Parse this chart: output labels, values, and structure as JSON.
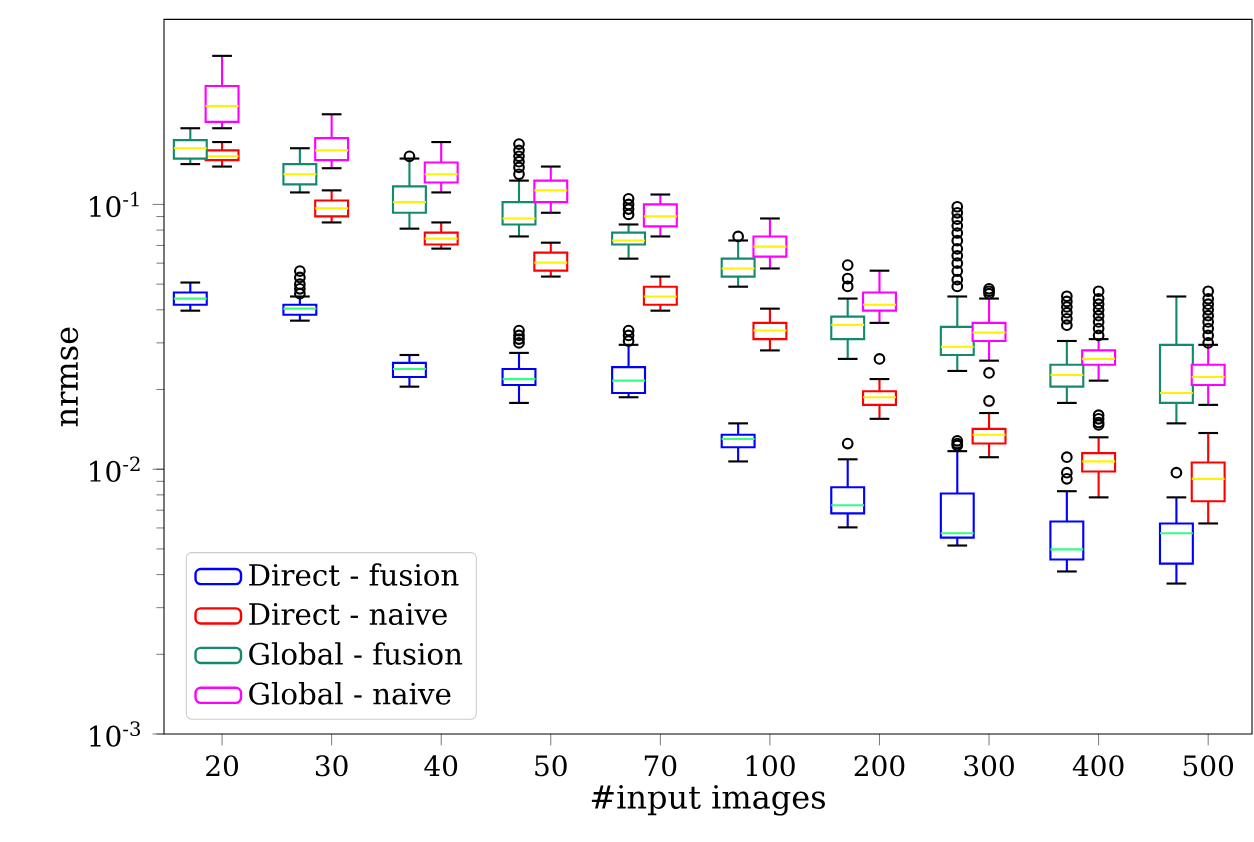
{
  "chart_data": {
    "type": "box",
    "xlabel": "#input images",
    "ylabel": "nrmse",
    "categories": [
      "20",
      "30",
      "40",
      "50",
      "70",
      "100",
      "200",
      "300",
      "400",
      "500"
    ],
    "log": "y",
    "ylim": [
      0.001,
      0.5
    ],
    "yticks": [
      {
        "value": 0.001,
        "label": "10$^{-3}$"
      },
      {
        "value": 0.01,
        "label": "10$^{-2}$"
      },
      {
        "value": 0.1,
        "label": "10$^{-1}$"
      }
    ],
    "legend": "bottom left",
    "grid": false,
    "marker": "circle",
    "series": [
      {
        "name": "Direct - fusion",
        "color": "#0000ff",
        "boxes": [
          {
            "low": 0.0397,
            "q1": 0.0418,
            "median": 0.0441,
            "q3": 0.0465,
            "high": 0.0507
          },
          {
            "low": 0.0364,
            "q1": 0.0383,
            "median": 0.0404,
            "q3": 0.0418,
            "high": 0.0449,
            "outliers": [
              0.056,
              0.053,
              0.05,
              0.048,
              0.046
            ]
          },
          {
            "low": 0.0205,
            "q1": 0.0223,
            "median": 0.0239,
            "q3": 0.0252,
            "high": 0.027
          },
          {
            "low": 0.0178,
            "q1": 0.0208,
            "median": 0.0219,
            "q3": 0.0239,
            "high": 0.0275,
            "outliers": [
              0.0334,
              0.032,
              0.031,
              0.03
            ]
          },
          {
            "low": 0.0187,
            "q1": 0.0194,
            "median": 0.0216,
            "q3": 0.0243,
            "high": 0.0295,
            "outliers": [
              0.0334,
              0.032,
              0.0305
            ]
          },
          {
            "low": 0.0107,
            "q1": 0.0121,
            "median": 0.013,
            "q3": 0.0135,
            "high": 0.0149
          },
          {
            "low": 0.00603,
            "q1": 0.00681,
            "median": 0.00731,
            "q3": 0.00855,
            "high": 0.0109,
            "outliers": [
              0.0125
            ]
          },
          {
            "low": 0.00515,
            "q1": 0.00552,
            "median": 0.00573,
            "q3": 0.0081,
            "high": 0.0117,
            "outliers": [
              0.0128,
              0.0125,
              0.0123
            ]
          },
          {
            "low": 0.00411,
            "q1": 0.00456,
            "median": 0.00498,
            "q3": 0.00635,
            "high": 0.00826,
            "outliers": [
              0.0111,
              0.0097,
              0.0092
            ]
          },
          {
            "low": 0.0037,
            "q1": 0.0044,
            "median": 0.00573,
            "q3": 0.00624,
            "high": 0.00783,
            "outliers": [
              0.0097
            ]
          }
        ]
      },
      {
        "name": "Direct - naive",
        "color": "#ff0000",
        "boxes": [
          {
            "low": 0.139,
            "q1": 0.147,
            "median": 0.152,
            "q3": 0.16,
            "high": 0.172
          },
          {
            "low": 0.0855,
            "q1": 0.0901,
            "median": 0.0966,
            "q3": 0.1035,
            "high": 0.113
          },
          {
            "low": 0.0681,
            "q1": 0.0706,
            "median": 0.0743,
            "q3": 0.0783,
            "high": 0.0855
          },
          {
            "low": 0.0534,
            "q1": 0.0562,
            "median": 0.0603,
            "q3": 0.0658,
            "high": 0.0717
          },
          {
            "low": 0.0397,
            "q1": 0.0418,
            "median": 0.0449,
            "q3": 0.0489,
            "high": 0.0534
          },
          {
            "low": 0.0281,
            "q1": 0.031,
            "median": 0.0334,
            "q3": 0.0357,
            "high": 0.0404
          },
          {
            "low": 0.0155,
            "q1": 0.0175,
            "median": 0.0187,
            "q3": 0.0197,
            "high": 0.0219,
            "outliers": [
              0.0261
            ]
          },
          {
            "low": 0.0111,
            "q1": 0.0125,
            "median": 0.0135,
            "q3": 0.0142,
            "high": 0.0163,
            "outliers": [
              0.0231,
              0.0181
            ]
          },
          {
            "low": 0.00783,
            "q1": 0.0098,
            "median": 0.0107,
            "q3": 0.0115,
            "high": 0.0132,
            "outliers": [
              0.016,
              0.0155,
              0.015,
              0.0147
            ]
          },
          {
            "low": 0.00624,
            "q1": 0.00757,
            "median": 0.0092,
            "q3": 0.0106,
            "high": 0.0137
          }
        ]
      },
      {
        "name": "Global - fusion",
        "color": "#138a6e",
        "boxes": [
          {
            "low": 0.142,
            "q1": 0.149,
            "median": 0.163,
            "q3": 0.175,
            "high": 0.194
          },
          {
            "low": 0.111,
            "q1": 0.119,
            "median": 0.13,
            "q3": 0.142,
            "high": 0.163
          },
          {
            "low": 0.081,
            "q1": 0.093,
            "median": 0.102,
            "q3": 0.117,
            "high": 0.149,
            "outliers": [
              0.152
            ]
          },
          {
            "low": 0.0757,
            "q1": 0.084,
            "median": 0.0885,
            "q3": 0.102,
            "high": 0.123,
            "outliers": [
              0.169,
              0.16,
              0.152,
              0.145,
              0.138,
              0.13
            ]
          },
          {
            "low": 0.0624,
            "q1": 0.0706,
            "median": 0.0731,
            "q3": 0.0783,
            "high": 0.084,
            "outliers": [
              0.105,
              0.1,
              0.096,
              0.0917
            ]
          },
          {
            "low": 0.0489,
            "q1": 0.0534,
            "median": 0.0573,
            "q3": 0.0624,
            "high": 0.0731,
            "outliers": [
              0.0757
            ]
          },
          {
            "low": 0.0261,
            "q1": 0.031,
            "median": 0.0351,
            "q3": 0.0377,
            "high": 0.0441,
            "outliers": [
              0.059,
              0.0525,
              0.049
            ]
          },
          {
            "low": 0.0235,
            "q1": 0.027,
            "median": 0.029,
            "q3": 0.0345,
            "high": 0.0449,
            "outliers": [
              0.098,
              0.093,
              0.088,
              0.083,
              0.078,
              0.073,
              0.068,
              0.064,
              0.06,
              0.056,
              0.052,
              0.049
            ]
          },
          {
            "low": 0.0178,
            "q1": 0.0205,
            "median": 0.0227,
            "q3": 0.0248,
            "high": 0.0305,
            "outliers": [
              0.045,
              0.043,
              0.041,
              0.039,
              0.037,
              0.035
            ]
          },
          {
            "low": 0.0149,
            "q1": 0.0178,
            "median": 0.0194,
            "q3": 0.0295,
            "high": 0.0449
          }
        ]
      },
      {
        "name": "Global - naive",
        "color": "#ff00ff",
        "boxes": [
          {
            "low": 0.194,
            "q1": 0.205,
            "median": 0.235,
            "q3": 0.28,
            "high": 0.364
          },
          {
            "low": 0.137,
            "q1": 0.147,
            "median": 0.16,
            "q3": 0.178,
            "high": 0.219
          },
          {
            "low": 0.111,
            "q1": 0.121,
            "median": 0.13,
            "q3": 0.144,
            "high": 0.172
          },
          {
            "low": 0.093,
            "q1": 0.102,
            "median": 0.113,
            "q3": 0.123,
            "high": 0.139
          },
          {
            "low": 0.0757,
            "q1": 0.0826,
            "median": 0.0901,
            "q3": 0.1,
            "high": 0.109
          },
          {
            "low": 0.0573,
            "q1": 0.0635,
            "median": 0.0693,
            "q3": 0.0757,
            "high": 0.0885
          },
          {
            "low": 0.0357,
            "q1": 0.0397,
            "median": 0.0418,
            "q3": 0.0465,
            "high": 0.0562
          },
          {
            "low": 0.0257,
            "q1": 0.0305,
            "median": 0.0328,
            "q3": 0.0357,
            "high": 0.0441,
            "outliers": [
              0.048,
              0.047,
              0.046
            ]
          },
          {
            "low": 0.0216,
            "q1": 0.0248,
            "median": 0.0261,
            "q3": 0.0281,
            "high": 0.031,
            "outliers": [
              0.047,
              0.044,
              0.042,
              0.04,
              0.038,
              0.036,
              0.034,
              0.032
            ]
          },
          {
            "low": 0.0175,
            "q1": 0.0208,
            "median": 0.0223,
            "q3": 0.0248,
            "high": 0.0295,
            "outliers": [
              0.047,
              0.044,
              0.042,
              0.04,
              0.038,
              0.036,
              0.034,
              0.032,
              0.03
            ]
          }
        ]
      }
    ]
  }
}
